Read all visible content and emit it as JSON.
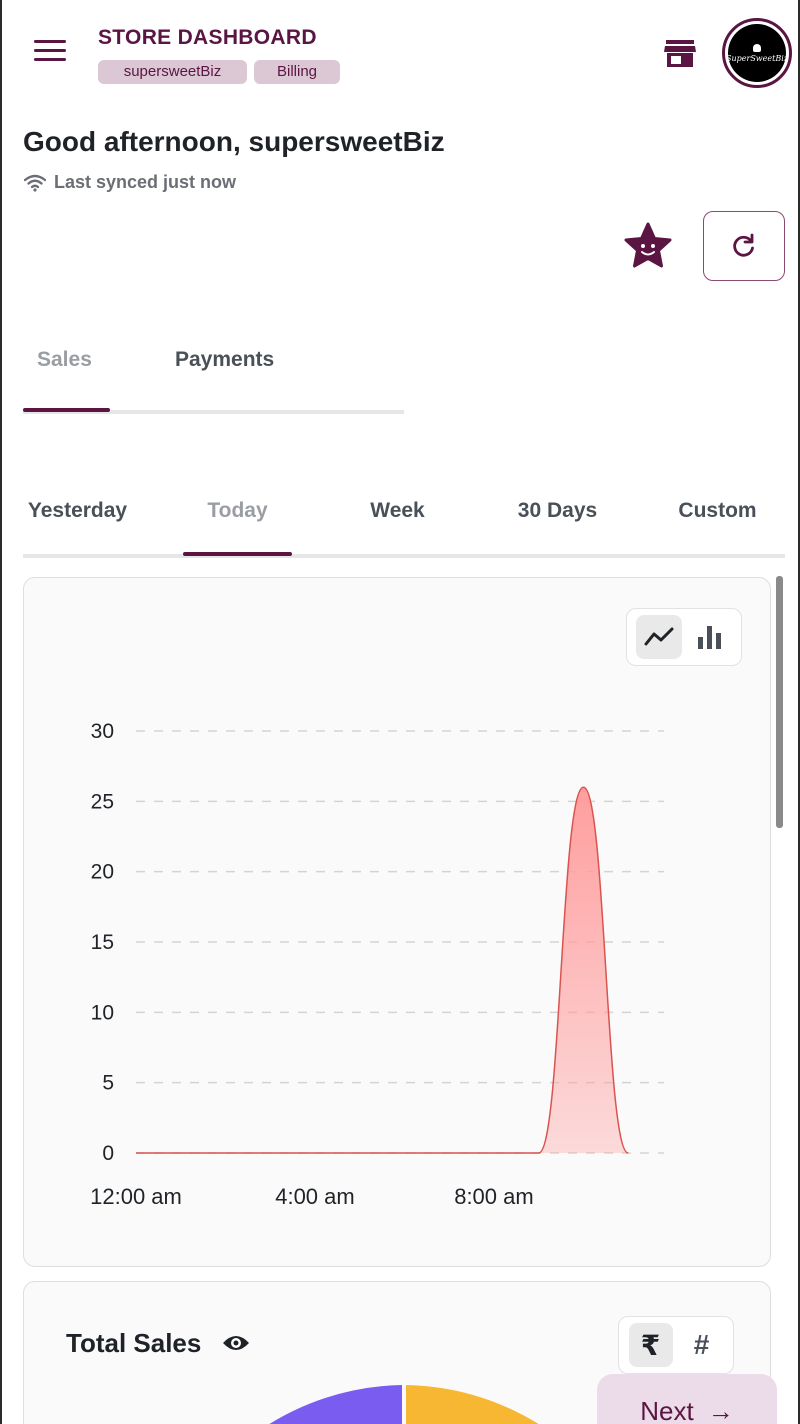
{
  "header": {
    "title": "STORE DASHBOARD",
    "chips": [
      "supersweetBiz",
      "Billing"
    ],
    "avatar_text": "SuperSweetBiz"
  },
  "greeting": {
    "text": "Good afternoon, supersweetBiz",
    "sync_status": "Last synced just now"
  },
  "primary_tabs": [
    {
      "label": "Sales",
      "active": true
    },
    {
      "label": "Payments",
      "active": false
    }
  ],
  "date_tabs": [
    {
      "label": "Yesterday",
      "active": false
    },
    {
      "label": "Today",
      "active": true
    },
    {
      "label": "Week",
      "active": false
    },
    {
      "label": "30 Days",
      "active": false
    },
    {
      "label": "Custom",
      "active": false
    }
  ],
  "chart_toggle": {
    "active": "line",
    "options": [
      "line-chart-icon",
      "bar-chart-icon"
    ]
  },
  "chart_data": {
    "type": "area",
    "title": "",
    "xlabel": "",
    "ylabel": "",
    "ylim": [
      0,
      30
    ],
    "yticks": [
      0,
      5,
      10,
      15,
      20,
      25,
      30
    ],
    "xticks": [
      "12:00 am",
      "4:00 am",
      "8:00 am"
    ],
    "x_hours": [
      0,
      1,
      2,
      3,
      4,
      5,
      6,
      7,
      8,
      9,
      10,
      11
    ],
    "values": [
      0,
      0,
      0,
      0,
      0,
      0,
      0,
      0,
      0,
      0,
      26,
      0
    ],
    "grid": true,
    "series": [
      {
        "color": "#ff9e9e",
        "values": [
          0,
          0,
          0,
          0,
          0,
          0,
          0,
          0,
          0,
          0,
          26,
          0
        ]
      }
    ]
  },
  "total_sales": {
    "title": "Total Sales",
    "unit_options": [
      "₹",
      "#"
    ],
    "active_unit": "₹",
    "donut_colors": [
      "#7b5cf0",
      "#f7b733"
    ]
  },
  "next_button": {
    "label": "Next",
    "arrow": "→"
  },
  "colors": {
    "brand": "#5a1542",
    "chip_bg": "#dcc8d4",
    "area_fill": "#ff9e9e",
    "area_stroke": "#d9534f"
  }
}
